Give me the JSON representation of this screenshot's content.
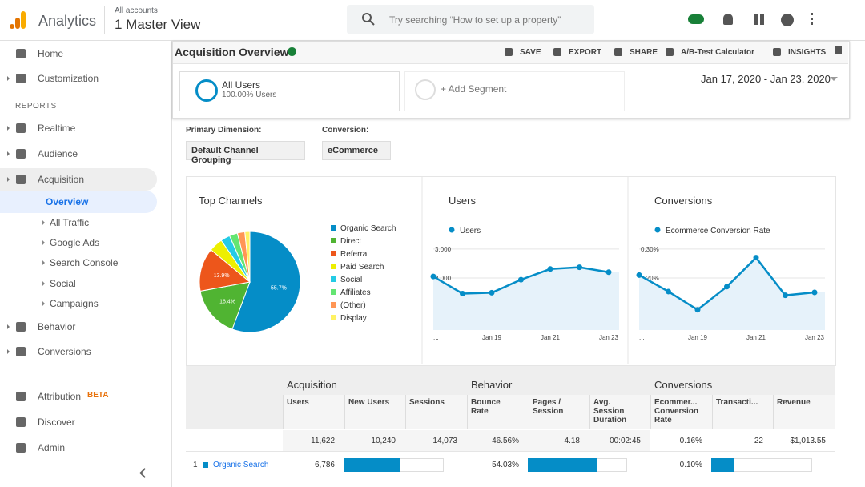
{
  "header": {
    "brand": "Analytics",
    "breadcrumb": "All accounts",
    "view": "1 Master View",
    "search": "Try searching “How to set up a property”"
  },
  "sidebar": {
    "nav": [
      "Home",
      "Customization"
    ],
    "section": "REPORTS",
    "reports": [
      "Realtime",
      "Audience",
      "Acquisition"
    ],
    "subitems": [
      "Overview",
      "All Traffic",
      "Google Ads",
      "Search Console",
      "Social",
      "Campaigns"
    ],
    "reports_after": [
      "Behavior",
      "Conversions"
    ],
    "footer": [
      {
        "label": "Attribution",
        "badge": "BETA"
      },
      {
        "label": "Discover"
      },
      {
        "label": "Admin"
      }
    ]
  },
  "toolbar": {
    "title": "Acquisition Overview",
    "actions": [
      "SAVE",
      "EXPORT",
      "SHARE",
      "A/B-Test Calculator",
      "INSIGHTS"
    ],
    "segment": {
      "name": "All Users",
      "detail": "100.00% Users"
    },
    "add_segment": "+ Add Segment",
    "date_range": "Jan 17, 2020 - Jan 23, 2020"
  },
  "controls": [
    {
      "label": "Primary Dimension:",
      "value": "Default Channel Grouping"
    },
    {
      "label": "Conversion:",
      "value": "eCommerce"
    }
  ],
  "chart_data": [
    {
      "type": "pie",
      "title": "Top Channels",
      "categories": [
        "Organic Search",
        "Direct",
        "Referral",
        "Paid Search",
        "Social",
        "Affiliates",
        "(Other)",
        "Display"
      ],
      "values": [
        55.7,
        16.4,
        13.9,
        4.4,
        3.0,
        2.6,
        2.4,
        1.6
      ],
      "value_labels": [
        "55.7%",
        "16.4%",
        "13.9%",
        null,
        null,
        null,
        null,
        null
      ],
      "colors": [
        "#058dc7",
        "#50b432",
        "#ed561b",
        "#edef00",
        "#24cbe5",
        "#64e572",
        "#ff9655",
        "#fff263"
      ]
    },
    {
      "type": "line",
      "title": "Users",
      "categories": [
        "...",
        null,
        "Jan 19",
        null,
        "Jan 21",
        null,
        "Jan 23"
      ],
      "series": [
        {
          "name": "Users",
          "color": "#058dc7",
          "values": [
            2050,
            1460,
            1490,
            1940,
            2310,
            2370,
            2200
          ]
        }
      ],
      "ylim": [
        200,
        3300
      ],
      "yticks": [
        {
          "value": 1000,
          "label": "1,000"
        },
        {
          "value": 2000,
          "label": "2,000"
        },
        {
          "value": 3000,
          "label": "3,000"
        }
      ],
      "grid": true
    },
    {
      "type": "line",
      "title": "Conversions",
      "categories": [
        "...",
        null,
        "Jan 19",
        null,
        "Jan 21",
        null,
        "Jan 23"
      ],
      "series": [
        {
          "name": "Ecommerce Conversion Rate",
          "color": "#058dc7",
          "values": [
            0.21,
            0.153,
            0.09,
            0.17,
            0.27,
            0.14,
            0.15
          ]
        }
      ],
      "ylim": [
        0.02,
        0.33
      ],
      "yticks": [
        {
          "value": 0.1,
          "label": "0.10%"
        },
        {
          "value": 0.2,
          "label": "0.20%"
        },
        {
          "value": 0.3,
          "label": "0.30%"
        }
      ],
      "grid": true
    }
  ],
  "table": {
    "groups": [
      "Acquisition",
      "Behavior",
      "Conversions"
    ],
    "columns": [
      "Users",
      "New Users",
      "Sessions",
      "Bounce Rate",
      "Pages / Session",
      "Avg. Session Duration",
      "Ecommer... Conversion Rate",
      "Transacti...",
      "Revenue"
    ],
    "totals": [
      "11,622",
      "10,240",
      "14,073",
      "46.56%",
      "4.18",
      "00:02:45",
      "0.16%",
      "22",
      "$1,013.55"
    ],
    "rows": [
      {
        "rank": "1",
        "name": "Organic Search",
        "cells": [
          {
            "value": "6,786",
            "bar": 57
          },
          {
            "value": "54.03%",
            "bar": 69
          },
          {
            "value": "0.10%",
            "bar": 23
          }
        ]
      }
    ]
  }
}
